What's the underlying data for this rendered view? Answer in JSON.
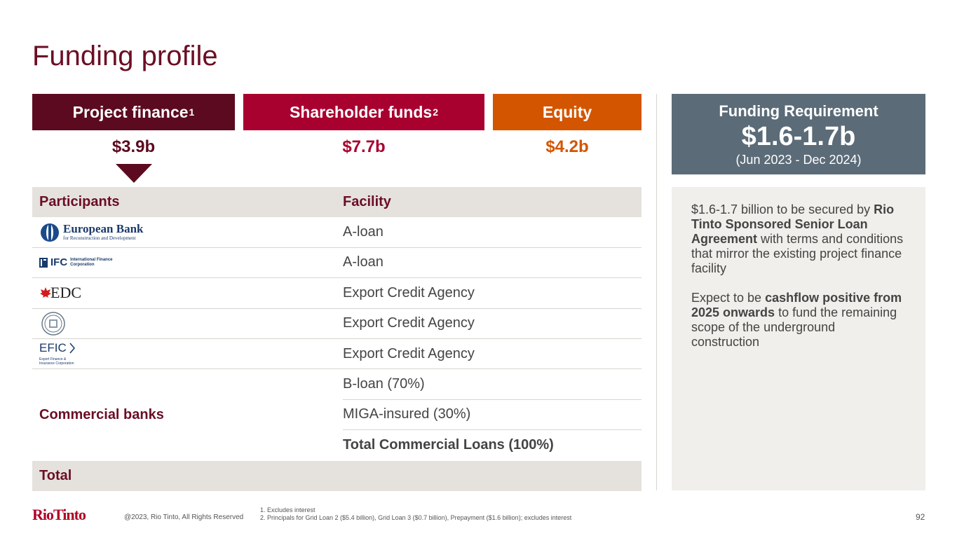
{
  "title": "Funding profile",
  "headers": {
    "project_finance": "Project finance",
    "project_finance_sup": "1",
    "shareholder_funds": "Shareholder funds",
    "shareholder_funds_sup": "2",
    "equity": "Equity"
  },
  "amounts": {
    "project_finance": "$3.9b",
    "shareholder_funds": "$7.7b",
    "equity": "$4.2b"
  },
  "table": {
    "col_participants": "Participants",
    "col_facility": "Facility",
    "rows": [
      {
        "logo": "European Bank",
        "logo_sub": "for Reconstruction and Development",
        "facility": "A-loan"
      },
      {
        "logo": "IFC",
        "logo_sub": "International Finance Corporation",
        "facility": "A-loan"
      },
      {
        "logo": "EDC",
        "logo_sub": "",
        "facility": "Export Credit Agency"
      },
      {
        "logo": "",
        "logo_sub": "",
        "facility": "Export Credit Agency"
      },
      {
        "logo": "EFIC",
        "logo_sub": "Export Finance & Insurance Corporation",
        "facility": "Export Credit Agency"
      }
    ],
    "commercial_banks": "Commercial banks",
    "commercial_rows": [
      "B-loan (70%)",
      "MIGA-insured (30%)",
      "Total Commercial Loans (100%)"
    ],
    "total": "Total"
  },
  "funding_requirement": {
    "title": "Funding Requirement",
    "amount": "$1.6-1.7b",
    "period": "(Jun 2023 - Dec 2024)"
  },
  "side": {
    "p1_a": "$1.6-1.7 billion to be secured by ",
    "p1_b": "Rio Tinto Sponsored Senior Loan Agreement",
    "p1_c": " with terms and conditions that mirror the existing project finance facility",
    "p2_a": "Expect to be ",
    "p2_b": "cashflow positive from 2025 onwards",
    "p2_c": " to fund the remaining scope of the underground construction"
  },
  "footer": {
    "logo": "RioTinto",
    "copyright": "@2023, Rio Tinto, All Rights Reserved",
    "note1": "1. Excludes interest",
    "note2": "2. Principals for Grid Loan 2 ($5.4 billion), Grid Loan 3 ($0.7 billion), Prepayment ($1.6 billion); excludes interest",
    "page": "92"
  },
  "colors": {
    "title": "#6b0e24",
    "project_finance": "#5c0a1f",
    "shareholder_funds": "#a8002f",
    "equity": "#d45500",
    "funding_box": "#5b6b78"
  }
}
